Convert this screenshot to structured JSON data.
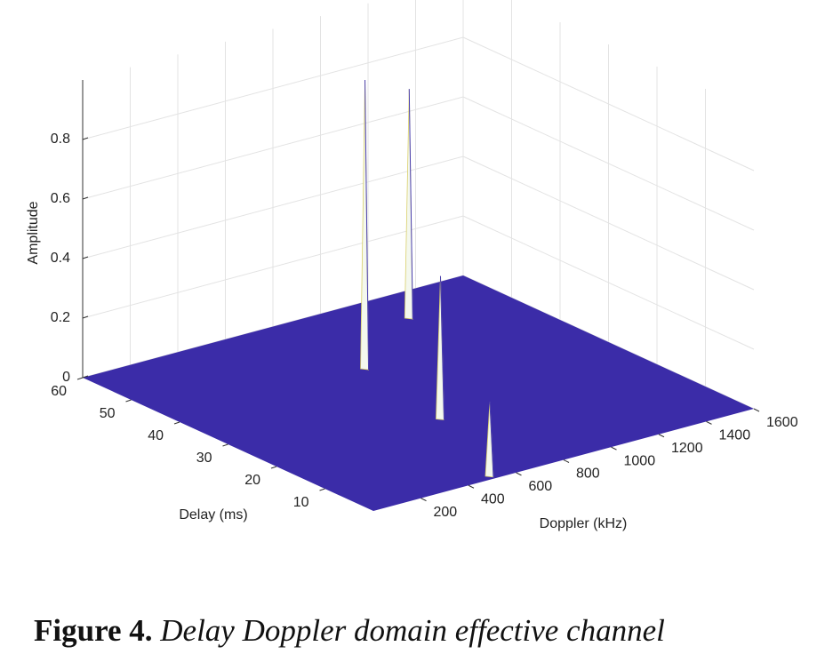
{
  "chart_data": {
    "type": "surface3d",
    "x_label": "Delay (ms)",
    "y_label": "Doppler (kHz)",
    "z_label": "Amplitude",
    "xlim": [
      0,
      60
    ],
    "xticks": [
      10,
      20,
      30,
      40,
      50,
      60
    ],
    "ylim": [
      0,
      1600
    ],
    "yticks": [
      200,
      400,
      600,
      800,
      1000,
      1200,
      1400,
      1600
    ],
    "zlim": [
      0,
      1
    ],
    "zticks": [
      0,
      0.2,
      0.4,
      0.6,
      0.8
    ],
    "grid": true,
    "color": "#3b2ca8",
    "peaks": [
      {
        "delay": 41,
        "doppler": 800,
        "amplitude": 0.97
      },
      {
        "delay": 52,
        "doppler": 1210,
        "amplitude": 0.77
      },
      {
        "delay": 21,
        "doppler": 710,
        "amplitude": 0.48
      },
      {
        "delay": 1,
        "doppler": 510,
        "amplitude": 0.25
      }
    ]
  },
  "caption": {
    "label": "Figure 4.",
    "text": "Delay Doppler domain effective channel"
  }
}
